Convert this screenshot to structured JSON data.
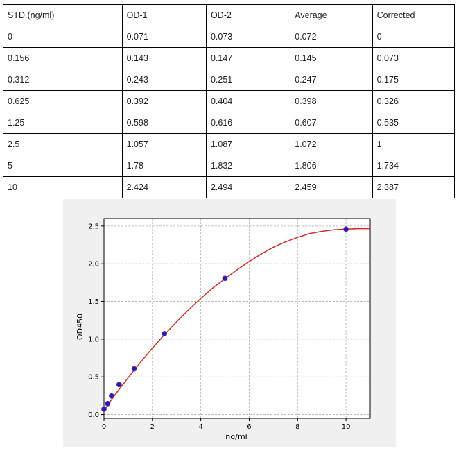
{
  "table": {
    "headers": [
      "STD.(ng/ml)",
      "OD-1",
      "OD-2",
      "Average",
      "Corrected"
    ],
    "rows": [
      [
        "0",
        "0.071",
        "0.073",
        "0.072",
        "0"
      ],
      [
        "0.156",
        "0.143",
        "0.147",
        "0.145",
        "0.073"
      ],
      [
        "0.312",
        "0.243",
        "0.251",
        "0.247",
        "0.175"
      ],
      [
        "0.625",
        "0.392",
        "0.404",
        "0.398",
        "0.326"
      ],
      [
        "1.25",
        "0.598",
        "0.616",
        "0.607",
        "0.535"
      ],
      [
        "2.5",
        "1.057",
        "1.087",
        "1.072",
        "1"
      ],
      [
        "5",
        "1.78",
        "1.832",
        "1.806",
        "1.734"
      ],
      [
        "10",
        "2.424",
        "2.494",
        "2.459",
        "2.387"
      ]
    ]
  },
  "chart_data": {
    "type": "scatter",
    "xlabel": "ng/ml",
    "ylabel": "OD450",
    "xlim": [
      0,
      11
    ],
    "ylim": [
      -0.05,
      2.6
    ],
    "xticks": [
      0,
      2,
      4,
      6,
      8,
      10
    ],
    "yticks": [
      0.0,
      0.5,
      1.0,
      1.5,
      2.0,
      2.5
    ],
    "xtick_labels": [
      "0",
      "2",
      "4",
      "6",
      "8",
      "10"
    ],
    "ytick_labels": [
      "0.0",
      "0.5",
      "1.0",
      "1.5",
      "2.0",
      "2.5"
    ],
    "grid": true,
    "series": [
      {
        "marker_color": "#1f1fbf",
        "x": [
          0,
          0.156,
          0.312,
          0.625,
          1.25,
          2.5,
          5,
          10
        ],
        "y": [
          0.072,
          0.145,
          0.247,
          0.398,
          0.607,
          1.072,
          1.806,
          2.459
        ]
      }
    ],
    "fit": {
      "color": "#d62728",
      "x": [
        0,
        0.25,
        0.5,
        1,
        1.5,
        2,
        2.5,
        3,
        3.5,
        4,
        4.5,
        5,
        5.5,
        6,
        6.5,
        7,
        7.5,
        8,
        8.5,
        9,
        9.5,
        10,
        10.5,
        11
      ],
      "y": [
        0.05,
        0.17,
        0.28,
        0.49,
        0.69,
        0.88,
        1.06,
        1.23,
        1.39,
        1.54,
        1.68,
        1.8,
        1.92,
        2.03,
        2.13,
        2.22,
        2.29,
        2.35,
        2.4,
        2.43,
        2.45,
        2.46,
        2.465,
        2.465
      ]
    }
  }
}
